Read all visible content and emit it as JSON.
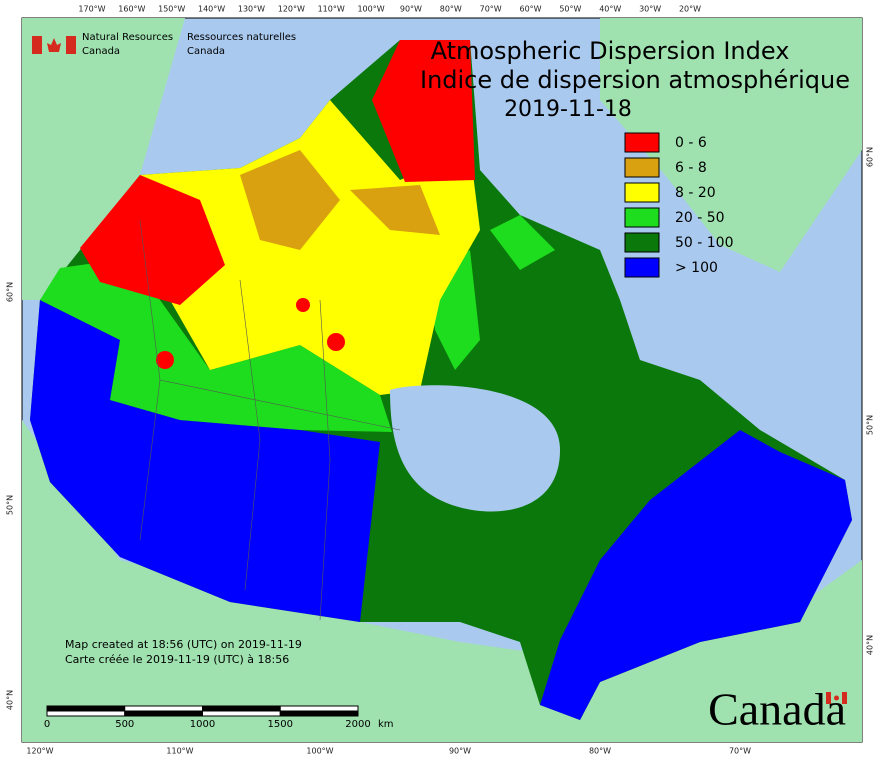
{
  "header": {
    "title_en": "Atmospheric Dispersion Index",
    "title_fr": "Indice de dispersion atmosphérique",
    "date": "2019-11-18"
  },
  "agency": {
    "en": [
      "Natural Resources",
      "Canada"
    ],
    "fr": [
      "Ressources naturelles",
      "Canada"
    ]
  },
  "legend": [
    {
      "label": "0 - 6",
      "color": "#ff0000"
    },
    {
      "label": "6 - 8",
      "color": "#d9a00f"
    },
    {
      "label": "8 - 20",
      "color": "#ffff00"
    },
    {
      "label": "20 - 50",
      "color": "#1edc1e"
    },
    {
      "label": "50 - 100",
      "color": "#0a780a"
    },
    {
      "label": "> 100",
      "color": "#0000ff"
    }
  ],
  "notes": [
    "Map created at 18:56 (UTC) on 2019-11-19",
    "Carte créée le 2019-11-19 (UTC) à 18:56"
  ],
  "scale": {
    "labels": [
      "0",
      "500",
      "1000",
      "1500",
      "2000"
    ],
    "unit": "km"
  },
  "graticule": {
    "top": [
      "170°W",
      "160°W",
      "150°W",
      "140°W",
      "130°W",
      "120°W",
      "110°W",
      "100°W",
      "90°W",
      "80°W",
      "70°W",
      "60°W",
      "50°W",
      "40°W",
      "30°W",
      "20°W"
    ],
    "bottom": [
      "120°W",
      "110°W",
      "100°W",
      "90°W",
      "80°W",
      "70°W"
    ],
    "left": [
      "60°N",
      "50°N",
      "40°N"
    ],
    "right": [
      "60°N",
      "50°N",
      "40°N"
    ]
  },
  "wordmark": "Canada"
}
